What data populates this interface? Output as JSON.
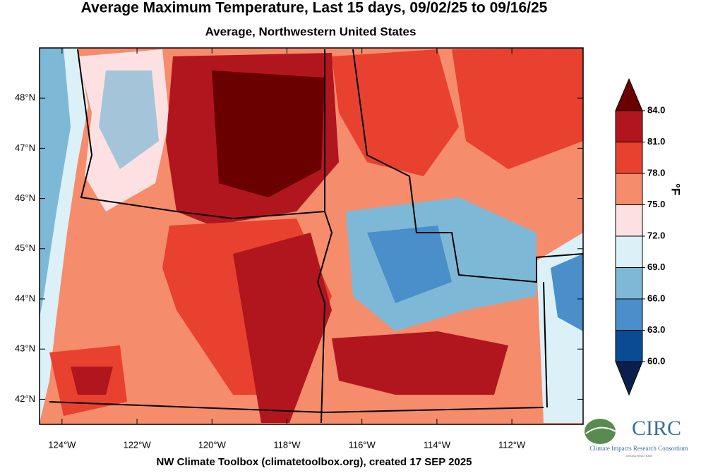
{
  "title": "Average Maximum Temperature, Last 15 days, 09/02/25 to 09/16/25",
  "subtitle": "Average, Northwestern United States",
  "map": {
    "xlim": [
      -124.6,
      -110.1
    ],
    "ylim": [
      41.5,
      49.0
    ],
    "lat_ticks": [
      {
        "value": 42,
        "label": "42°N"
      },
      {
        "value": 43,
        "label": "43°N"
      },
      {
        "value": 44,
        "label": "44°N"
      },
      {
        "value": 45,
        "label": "45°N"
      },
      {
        "value": 46,
        "label": "46°N"
      },
      {
        "value": 47,
        "label": "47°N"
      },
      {
        "value": 48,
        "label": "48°N"
      }
    ],
    "lon_ticks": [
      {
        "value": -124,
        "label": "124°W"
      },
      {
        "value": -122,
        "label": "122°W"
      },
      {
        "value": -120,
        "label": "120°W"
      },
      {
        "value": -118,
        "label": "118°W"
      },
      {
        "value": -116,
        "label": "116°W"
      },
      {
        "value": -114,
        "label": "114°W"
      },
      {
        "value": -112,
        "label": "112°W"
      }
    ]
  },
  "colorbar": {
    "unit": "°F",
    "ticks": [
      {
        "value": 60,
        "label": "60.0"
      },
      {
        "value": 63,
        "label": "63.0"
      },
      {
        "value": 66,
        "label": "66.0"
      },
      {
        "value": 69,
        "label": "69.0"
      },
      {
        "value": 72,
        "label": "72.0"
      },
      {
        "value": 75,
        "label": "75.0"
      },
      {
        "value": 78,
        "label": "78.0"
      },
      {
        "value": 81,
        "label": "81.0"
      },
      {
        "value": 84,
        "label": "84.0"
      }
    ],
    "under_color": "#0b1f4c",
    "colors": [
      "#0a4c94",
      "#4a8fca",
      "#7db9d6",
      "#dcf0f8",
      "#fde1e2",
      "#f58c6c",
      "#e8412f",
      "#b1161e"
    ],
    "over_color": "#6a0000"
  },
  "footer": "NW Climate Toolbox (climatetoolbox.org), created 17 SEP 2025",
  "logo": {
    "name": "CIRC",
    "full_name": "Climate Impacts Research Consortium",
    "tagline": "A NOAA RISA TEAM"
  }
}
